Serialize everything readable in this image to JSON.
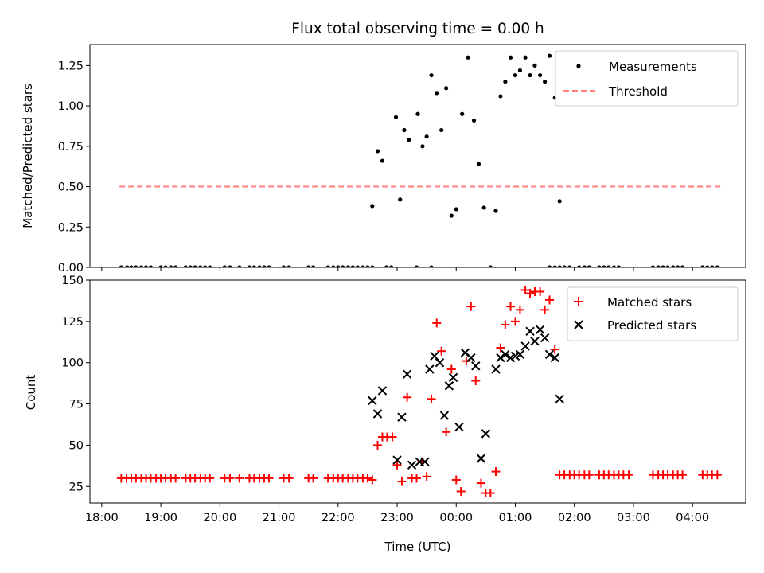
{
  "chart_data": [
    {
      "type": "scatter",
      "title": "Flux total observing time = 0.00 h",
      "xlabel": "",
      "ylabel": "Matched/Predicted stars",
      "xlim": [
        -0.2,
        10.9
      ],
      "ylim": [
        0,
        1.38
      ],
      "yticks": [
        0.0,
        0.25,
        0.5,
        0.75,
        1.0,
        1.25
      ],
      "ytick_labels": [
        "0.00",
        "0.25",
        "0.50",
        "0.75",
        "1.00",
        "1.25"
      ],
      "legend_position": "top-right",
      "series": [
        {
          "name": "Measurements",
          "marker": "dot",
          "color": "#000000",
          "points": [
            [
              0.33,
              0
            ],
            [
              0.43,
              0
            ],
            [
              0.5,
              0
            ],
            [
              0.58,
              0
            ],
            [
              0.67,
              0
            ],
            [
              0.75,
              0
            ],
            [
              0.83,
              0
            ],
            [
              1.0,
              0
            ],
            [
              1.08,
              0
            ],
            [
              1.17,
              0
            ],
            [
              1.25,
              0
            ],
            [
              1.42,
              0
            ],
            [
              1.5,
              0
            ],
            [
              1.58,
              0
            ],
            [
              1.67,
              0
            ],
            [
              1.75,
              0
            ],
            [
              1.83,
              0
            ],
            [
              2.08,
              0
            ],
            [
              2.17,
              0
            ],
            [
              2.33,
              0
            ],
            [
              2.5,
              0
            ],
            [
              2.58,
              0
            ],
            [
              2.67,
              0
            ],
            [
              2.75,
              0
            ],
            [
              2.83,
              0
            ],
            [
              3.08,
              0
            ],
            [
              3.17,
              0
            ],
            [
              3.5,
              0
            ],
            [
              3.58,
              0
            ],
            [
              3.83,
              0
            ],
            [
              3.92,
              0
            ],
            [
              4.0,
              0
            ],
            [
              4.08,
              0
            ],
            [
              4.17,
              0
            ],
            [
              4.25,
              0
            ],
            [
              4.33,
              0
            ],
            [
              4.42,
              0
            ],
            [
              4.5,
              0
            ],
            [
              4.58,
              0
            ],
            [
              4.82,
              0
            ],
            [
              4.9,
              0
            ],
            [
              5.33,
              0
            ],
            [
              5.58,
              0
            ],
            [
              7.58,
              0
            ],
            [
              7.67,
              0
            ],
            [
              7.75,
              0
            ],
            [
              7.83,
              0
            ],
            [
              7.92,
              0
            ],
            [
              8.08,
              0
            ],
            [
              8.17,
              0
            ],
            [
              8.25,
              0
            ],
            [
              8.42,
              0
            ],
            [
              8.5,
              0
            ],
            [
              8.58,
              0
            ],
            [
              8.67,
              0
            ],
            [
              8.75,
              0
            ],
            [
              9.33,
              0
            ],
            [
              9.42,
              0
            ],
            [
              9.5,
              0
            ],
            [
              9.58,
              0
            ],
            [
              9.67,
              0
            ],
            [
              9.75,
              0
            ],
            [
              9.83,
              0
            ],
            [
              10.17,
              0
            ],
            [
              10.25,
              0
            ],
            [
              10.33,
              0
            ],
            [
              10.42,
              0
            ],
            [
              4.58,
              0.38
            ],
            [
              4.67,
              0.72
            ],
            [
              4.75,
              0.66
            ],
            [
              4.98,
              0.93
            ],
            [
              5.05,
              0.42
            ],
            [
              5.12,
              0.85
            ],
            [
              5.2,
              0.79
            ],
            [
              5.35,
              0.95
            ],
            [
              5.43,
              0.75
            ],
            [
              5.5,
              0.81
            ],
            [
              5.58,
              1.19
            ],
            [
              5.67,
              1.08
            ],
            [
              5.75,
              0.85
            ],
            [
              5.83,
              1.11
            ],
            [
              5.92,
              0.32
            ],
            [
              6.0,
              0.36
            ],
            [
              6.1,
              0.95
            ],
            [
              6.2,
              1.3
            ],
            [
              6.3,
              0.91
            ],
            [
              6.38,
              0.64
            ],
            [
              6.47,
              0.37
            ],
            [
              6.67,
              0.35
            ],
            [
              6.75,
              1.06
            ],
            [
              6.83,
              1.15
            ],
            [
              6.92,
              1.3
            ],
            [
              7.0,
              1.19
            ],
            [
              7.08,
              1.22
            ],
            [
              7.17,
              1.3
            ],
            [
              7.25,
              1.19
            ],
            [
              7.33,
              1.25
            ],
            [
              7.42,
              1.19
            ],
            [
              7.5,
              1.15
            ],
            [
              7.58,
              1.31
            ],
            [
              7.67,
              1.05
            ],
            [
              7.75,
              0.41
            ],
            [
              6.58,
              0
            ]
          ]
        },
        {
          "name": "Threshold",
          "style": "dashed",
          "color": "#ff7f7f",
          "x": [
            0.3,
            10.47
          ],
          "values": [
            0.5,
            0.5
          ]
        }
      ]
    },
    {
      "type": "scatter",
      "title": "",
      "xlabel": "Time (UTC)",
      "ylabel": "Count",
      "xlim": [
        -0.2,
        10.9
      ],
      "ylim": [
        15,
        150
      ],
      "yticks": [
        25,
        50,
        75,
        100,
        125,
        150
      ],
      "ytick_labels": [
        "25",
        "50",
        "75",
        "100",
        "125",
        "150"
      ],
      "xticks": [
        0,
        1,
        2,
        3,
        4,
        5,
        6,
        7,
        8,
        9,
        10
      ],
      "xtick_labels": [
        "18:00",
        "19:00",
        "20:00",
        "21:00",
        "22:00",
        "23:00",
        "00:00",
        "01:00",
        "02:00",
        "03:00",
        "04:00"
      ],
      "legend_position": "top-right",
      "series": [
        {
          "name": "Matched stars",
          "marker": "plus",
          "color": "#ff0000",
          "points": [
            [
              0.33,
              30
            ],
            [
              0.42,
              30
            ],
            [
              0.5,
              30
            ],
            [
              0.58,
              30
            ],
            [
              0.67,
              30
            ],
            [
              0.75,
              30
            ],
            [
              0.83,
              30
            ],
            [
              0.92,
              30
            ],
            [
              1.0,
              30
            ],
            [
              1.08,
              30
            ],
            [
              1.17,
              30
            ],
            [
              1.25,
              30
            ],
            [
              1.42,
              30
            ],
            [
              1.5,
              30
            ],
            [
              1.58,
              30
            ],
            [
              1.67,
              30
            ],
            [
              1.75,
              30
            ],
            [
              1.83,
              30
            ],
            [
              2.08,
              30
            ],
            [
              2.17,
              30
            ],
            [
              2.33,
              30
            ],
            [
              2.5,
              30
            ],
            [
              2.58,
              30
            ],
            [
              2.67,
              30
            ],
            [
              2.75,
              30
            ],
            [
              2.83,
              30
            ],
            [
              3.08,
              30
            ],
            [
              3.17,
              30
            ],
            [
              3.5,
              30
            ],
            [
              3.58,
              30
            ],
            [
              3.83,
              30
            ],
            [
              3.92,
              30
            ],
            [
              4.0,
              30
            ],
            [
              4.08,
              30
            ],
            [
              4.17,
              30
            ],
            [
              4.25,
              30
            ],
            [
              4.33,
              30
            ],
            [
              4.42,
              30
            ],
            [
              4.5,
              30
            ],
            [
              4.58,
              29
            ],
            [
              4.67,
              50
            ],
            [
              4.75,
              55
            ],
            [
              4.83,
              55
            ],
            [
              4.92,
              55
            ],
            [
              5.0,
              38
            ],
            [
              5.08,
              28
            ],
            [
              5.17,
              79
            ],
            [
              5.25,
              30
            ],
            [
              5.33,
              30
            ],
            [
              5.42,
              40
            ],
            [
              5.5,
              31
            ],
            [
              5.58,
              78
            ],
            [
              5.67,
              124
            ],
            [
              5.75,
              107
            ],
            [
              5.83,
              58
            ],
            [
              5.92,
              96
            ],
            [
              6.0,
              29
            ],
            [
              6.08,
              22
            ],
            [
              6.17,
              101
            ],
            [
              6.25,
              134
            ],
            [
              6.33,
              89
            ],
            [
              6.42,
              27
            ],
            [
              6.5,
              21
            ],
            [
              6.58,
              21
            ],
            [
              6.67,
              34
            ],
            [
              6.75,
              109
            ],
            [
              6.83,
              123
            ],
            [
              6.92,
              134
            ],
            [
              7.0,
              125
            ],
            [
              7.08,
              132
            ],
            [
              7.17,
              144
            ],
            [
              7.25,
              142
            ],
            [
              7.33,
              143
            ],
            [
              7.42,
              143
            ],
            [
              7.5,
              132
            ],
            [
              7.58,
              138
            ],
            [
              7.67,
              108
            ],
            [
              7.75,
              32
            ],
            [
              7.83,
              32
            ],
            [
              7.92,
              32
            ],
            [
              8.0,
              32
            ],
            [
              8.08,
              32
            ],
            [
              8.17,
              32
            ],
            [
              8.25,
              32
            ],
            [
              8.42,
              32
            ],
            [
              8.5,
              32
            ],
            [
              8.58,
              32
            ],
            [
              8.67,
              32
            ],
            [
              8.75,
              32
            ],
            [
              8.83,
              32
            ],
            [
              8.92,
              32
            ],
            [
              9.33,
              32
            ],
            [
              9.42,
              32
            ],
            [
              9.5,
              32
            ],
            [
              9.58,
              32
            ],
            [
              9.67,
              32
            ],
            [
              9.75,
              32
            ],
            [
              9.83,
              32
            ],
            [
              10.17,
              32
            ],
            [
              10.25,
              32
            ],
            [
              10.33,
              32
            ],
            [
              10.42,
              32
            ]
          ]
        },
        {
          "name": "Predicted stars",
          "marker": "x",
          "color": "#000000",
          "points": [
            [
              4.58,
              77
            ],
            [
              4.67,
              69
            ],
            [
              4.75,
              83
            ],
            [
              5.0,
              41
            ],
            [
              5.08,
              67
            ],
            [
              5.17,
              93
            ],
            [
              5.25,
              38
            ],
            [
              5.38,
              40
            ],
            [
              5.47,
              40
            ],
            [
              5.55,
              96
            ],
            [
              5.63,
              104
            ],
            [
              5.72,
              100
            ],
            [
              5.8,
              68
            ],
            [
              5.88,
              86
            ],
            [
              5.95,
              91
            ],
            [
              6.05,
              61
            ],
            [
              6.15,
              106
            ],
            [
              6.25,
              103
            ],
            [
              6.33,
              98
            ],
            [
              6.42,
              42
            ],
            [
              6.5,
              57
            ],
            [
              6.67,
              96
            ],
            [
              6.75,
              103
            ],
            [
              6.83,
              105
            ],
            [
              6.92,
              103
            ],
            [
              7.0,
              104
            ],
            [
              7.08,
              105
            ],
            [
              7.17,
              110
            ],
            [
              7.25,
              119
            ],
            [
              7.33,
              113
            ],
            [
              7.42,
              120
            ],
            [
              7.5,
              115
            ],
            [
              7.58,
              105
            ],
            [
              7.67,
              103
            ],
            [
              7.75,
              78
            ]
          ]
        }
      ]
    }
  ]
}
